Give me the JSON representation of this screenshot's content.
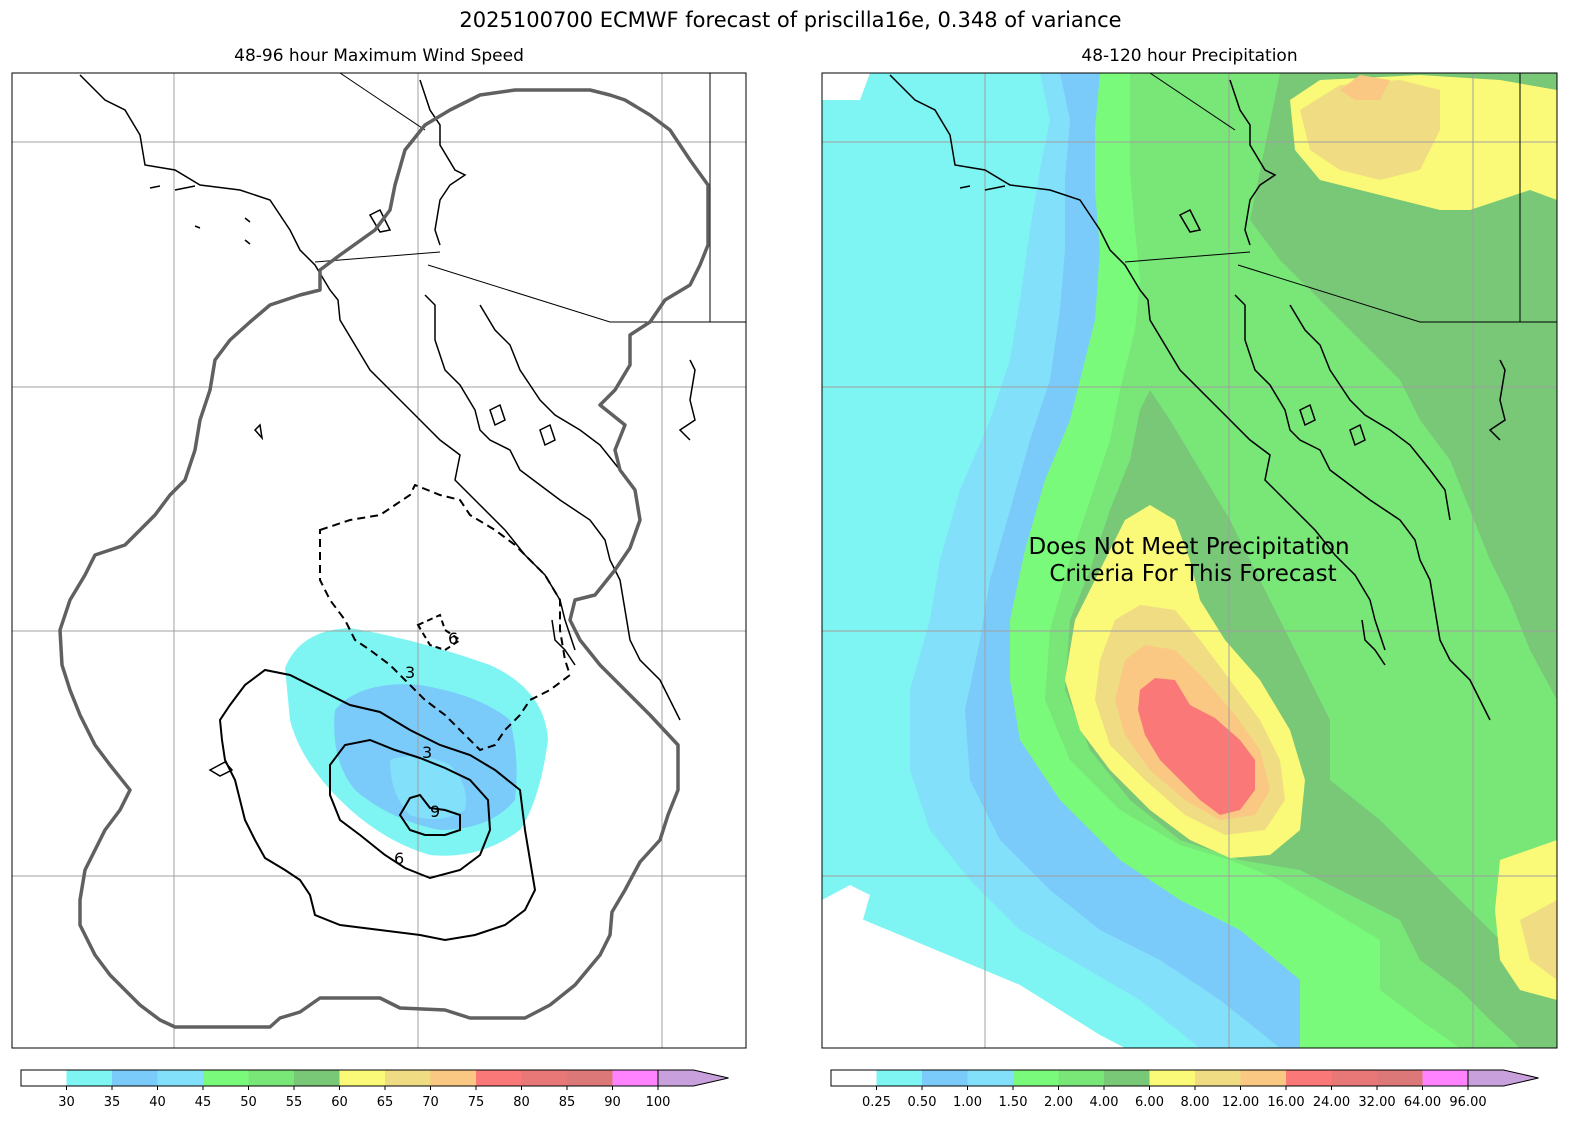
{
  "suptitle": "2025100700 ECMWF forecast of priscilla16e, 0.348 of variance",
  "chart_data": [
    {
      "type": "heatmap",
      "title": "48-96 hour Maximum Wind Speed",
      "colorbar": {
        "ticks": [
          "30",
          "35",
          "40",
          "45",
          "50",
          "55",
          "60",
          "65",
          "70",
          "75",
          "80",
          "85",
          "90",
          "100"
        ],
        "colors": [
          "#ffffff",
          "#7ef5f2",
          "#7acbfa",
          "#82e0fa",
          "#7afa7a",
          "#79e678",
          "#78c878",
          "#fafa78",
          "#f0dc82",
          "#fac882",
          "#fa7878",
          "#e87878",
          "#dc7878",
          "#ff82ff",
          "#c8a0dc"
        ]
      },
      "contour_labels": [
        "3",
        "3",
        "6",
        "6",
        "9"
      ],
      "note_colors": {
        "swath_outline": "#606060",
        "contour": "#000000"
      }
    },
    {
      "type": "heatmap",
      "title": "48-120 hour Precipitation",
      "colorbar": {
        "ticks": [
          "0.25",
          "0.50",
          "1.00",
          "1.50",
          "2.00",
          "4.00",
          "6.00",
          "8.00",
          "12.00",
          "16.00",
          "24.00",
          "32.00",
          "64.00",
          "96.00"
        ],
        "colors": [
          "#ffffff",
          "#7ef5f2",
          "#7acbfa",
          "#82e0fa",
          "#7afa7a",
          "#79e678",
          "#78c878",
          "#fafa78",
          "#f0dc82",
          "#fac882",
          "#fa7878",
          "#e87878",
          "#dc7878",
          "#ff82ff",
          "#c8a0dc"
        ]
      },
      "annotation": [
        "Does Not Meet Precipitation",
        "Criteria For This Forecast"
      ]
    }
  ]
}
